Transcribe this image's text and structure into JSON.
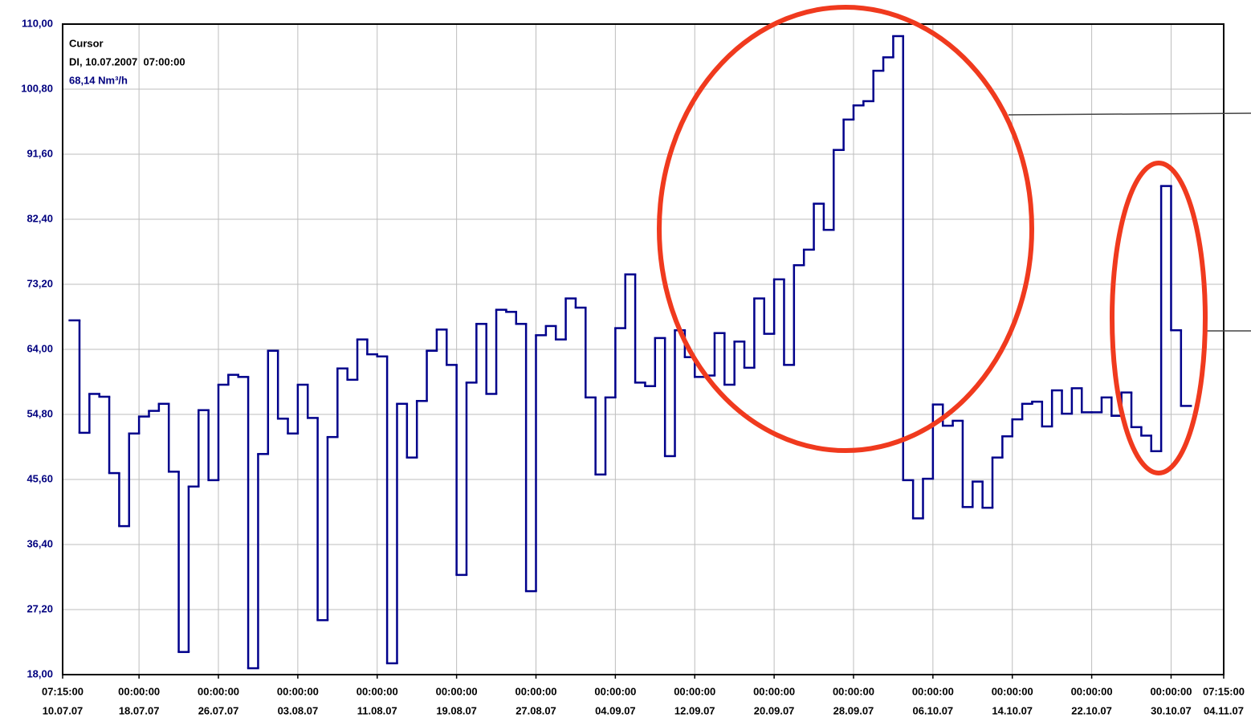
{
  "chart_data": {
    "type": "step",
    "annotations": {
      "title": "Cursor",
      "time": "DI, 10.07.2007  07:00:00",
      "value": "68,14 Nm³/h"
    },
    "xlim": [
      0.302,
      117.302
    ],
    "xticks": [
      {
        "value": 0.302,
        "label": "10.07.07"
      },
      {
        "value": 8,
        "label": "18.07.07"
      },
      {
        "value": 16,
        "label": "26.07.07"
      },
      {
        "value": 24,
        "label": "03.08.07"
      },
      {
        "value": 32,
        "label": "11.08.07"
      },
      {
        "value": 40,
        "label": "19.08.07"
      },
      {
        "value": 48,
        "label": "27.08.07"
      },
      {
        "value": 56,
        "label": "04.09.07"
      },
      {
        "value": 64,
        "label": "12.09.07"
      },
      {
        "value": 72,
        "label": "20.09.07"
      },
      {
        "value": 80,
        "label": "28.09.07"
      },
      {
        "value": 88,
        "label": "06.10.07"
      },
      {
        "value": 96,
        "label": "14.10.07"
      },
      {
        "value": 104,
        "label": "22.10.07"
      },
      {
        "value": 112,
        "label": "30.10.07"
      },
      {
        "value": 117.302,
        "label": "04.11.07"
      }
    ],
    "xtick_times": [
      "07:15:00",
      "00:00:00",
      "00:00:00",
      "00:00:00",
      "00:00:00",
      "00:00:00",
      "00:00:00",
      "00:00:00",
      "00:00:00",
      "00:00:00",
      "00:00:00",
      "00:00:00",
      "00:00:00",
      "00:00:00",
      "00:00:00",
      "07:15:00"
    ],
    "ylim": [
      18,
      110
    ],
    "yticks": [
      {
        "value": 18,
        "label": "18,00"
      },
      {
        "value": 27.2,
        "label": "27,20"
      },
      {
        "value": 36.4,
        "label": "36,40"
      },
      {
        "value": 45.6,
        "label": "45,60"
      },
      {
        "value": 54.8,
        "label": "54,80"
      },
      {
        "value": 64,
        "label": "64,00"
      },
      {
        "value": 73.2,
        "label": "73,20"
      },
      {
        "value": 82.4,
        "label": "82,40"
      },
      {
        "value": 91.6,
        "label": "91,60"
      },
      {
        "value": 100.8,
        "label": "100,80"
      },
      {
        "value": 110,
        "label": "110,00"
      }
    ],
    "grid": true,
    "series": [
      {
        "color": "#00008b",
        "x": [
          1,
          2,
          3,
          4,
          5,
          6,
          7,
          8,
          9,
          10,
          11,
          12,
          13,
          14,
          15,
          16,
          17,
          18,
          19,
          20,
          21,
          22,
          23,
          24,
          25,
          26,
          27,
          28,
          29,
          30,
          31,
          32,
          33,
          34,
          35,
          36,
          37,
          38,
          39,
          40,
          41,
          42,
          43,
          44,
          45,
          46,
          47,
          48,
          49,
          50,
          51,
          52,
          53,
          54,
          55,
          56,
          57,
          58,
          59,
          60,
          61,
          62,
          63,
          64,
          65,
          66,
          67,
          68,
          69,
          70,
          71,
          72,
          73,
          74,
          75,
          76,
          77,
          78,
          79,
          80,
          81,
          82,
          83,
          84,
          85,
          86,
          87,
          88,
          89,
          90,
          91,
          92,
          93,
          94,
          95,
          96,
          97,
          98,
          99,
          100,
          101,
          102,
          103,
          104,
          105,
          106,
          107,
          108,
          109,
          110,
          111,
          112,
          113
        ],
        "values": [
          68.1,
          52.2,
          57.7,
          57.3,
          46.5,
          39.0,
          52.1,
          54.5,
          55.3,
          56.3,
          46.7,
          21.2,
          44.6,
          55.4,
          45.5,
          59.0,
          60.4,
          60.1,
          18.9,
          49.2,
          63.8,
          54.2,
          52.1,
          59.0,
          54.3,
          25.7,
          51.6,
          61.3,
          59.7,
          65.4,
          63.3,
          63.0,
          19.6,
          56.3,
          48.7,
          56.7,
          63.8,
          66.8,
          61.8,
          32.1,
          59.3,
          67.6,
          57.7,
          69.6,
          69.3,
          67.6,
          29.8,
          66.0,
          67.3,
          65.4,
          71.2,
          69.9,
          57.2,
          46.3,
          57.2,
          67.0,
          74.6,
          59.3,
          58.8,
          65.6,
          48.9,
          66.7,
          62.9,
          60.1,
          60.3,
          66.3,
          59.0,
          65.1,
          61.4,
          71.2,
          66.2,
          73.9,
          61.8,
          75.9,
          78.1,
          84.6,
          80.9,
          92.2,
          96.5,
          98.5,
          99.1,
          103.4,
          105.3,
          108.3,
          45.5,
          40.1,
          45.7,
          56.2,
          53.2,
          53.9,
          41.7,
          45.3,
          41.6,
          48.7,
          51.7,
          54.1,
          56.3,
          56.6,
          53.1,
          58.2,
          54.9,
          58.5,
          55.1,
          55.1,
          57.2,
          54.6,
          57.9,
          53.0,
          51.8,
          49.6,
          87.1,
          66.7,
          56.0
        ]
      }
    ]
  }
}
